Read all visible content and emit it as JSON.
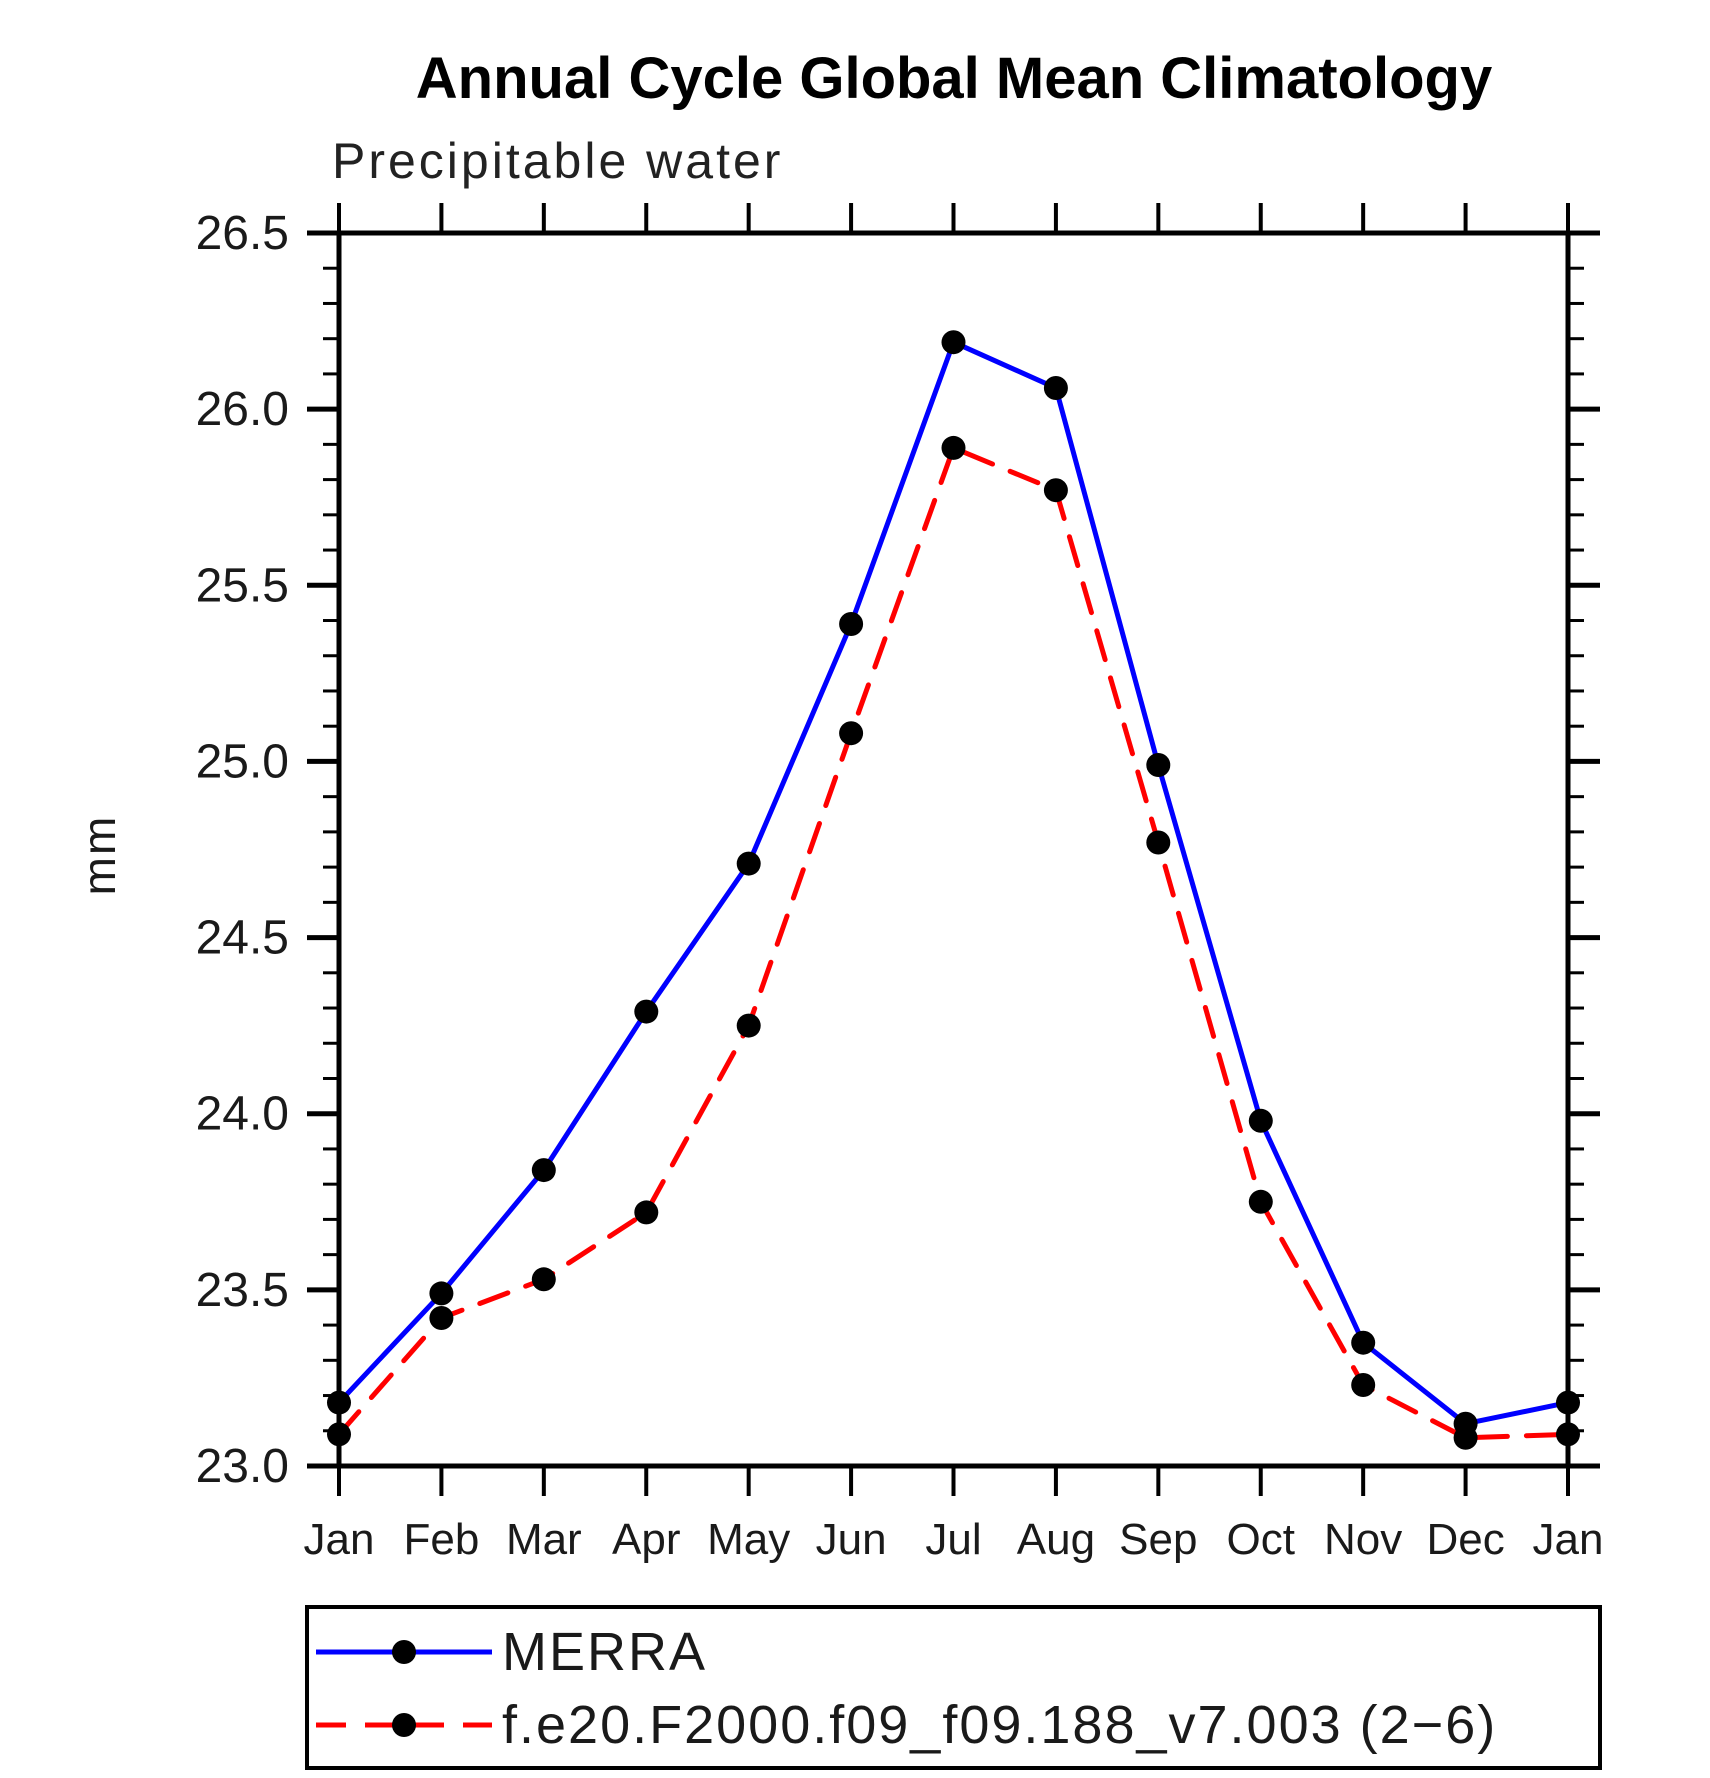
{
  "page": {
    "background": "#ffffff",
    "axis_color": "#000000",
    "marker_color": "#000000"
  },
  "chart_data": {
    "type": "line",
    "title": "Annual Cycle Global Mean Climatology",
    "subtitle": "Precipitable water",
    "xlabel": "",
    "ylabel": "mm",
    "categories": [
      "Jan",
      "Feb",
      "Mar",
      "Apr",
      "May",
      "Jun",
      "Jul",
      "Aug",
      "Sep",
      "Oct",
      "Nov",
      "Dec",
      "Jan"
    ],
    "ylim": [
      23.0,
      26.5
    ],
    "ytick_major_step": 0.5,
    "ytick_minor_step": 0.1,
    "ytick_labels": [
      "23.0",
      "23.5",
      "24.0",
      "24.5",
      "25.0",
      "25.5",
      "26.0",
      "26.5"
    ],
    "grid": false,
    "legend_position": "bottom",
    "series": [
      {
        "name": "MERRA",
        "color": "#0000ff",
        "line_style": "solid",
        "marker": "circle",
        "marker_color": "#000000",
        "values": [
          23.18,
          23.49,
          23.84,
          24.29,
          24.71,
          25.39,
          26.19,
          26.06,
          24.99,
          23.98,
          23.35,
          23.12,
          23.18
        ]
      },
      {
        "name": "f.e20.F2000.f09_f09.188_v7.003 (2−6)",
        "color": "#ff0000",
        "line_style": "dashed",
        "marker": "circle",
        "marker_color": "#000000",
        "values": [
          23.09,
          23.42,
          23.53,
          23.72,
          24.25,
          25.08,
          25.89,
          25.77,
          24.77,
          23.75,
          23.23,
          23.08,
          23.09
        ]
      }
    ]
  }
}
